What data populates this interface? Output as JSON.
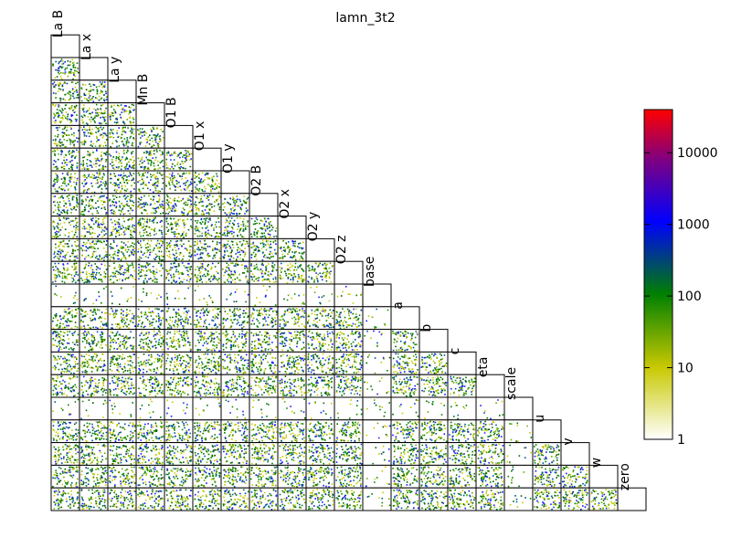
{
  "chart_data": {
    "type": "heatmap",
    "title": "lamn_3t2",
    "parameters": [
      "La B",
      "La x",
      "La y",
      "Mn B",
      "O1 B",
      "O1 x",
      "O1 y",
      "O2 B",
      "O2 x",
      "O2 y",
      "O2 z",
      "base",
      "a",
      "b",
      "c",
      "eta",
      "scale",
      "u",
      "v",
      "w",
      "zero"
    ],
    "layout": "lower-triangle pairwise scatter-density matrix",
    "colorbar": {
      "scale": "log",
      "range": [
        1,
        40000
      ],
      "ticks": [
        1,
        10,
        100,
        1000,
        10000
      ],
      "tick_labels": [
        "1",
        "10",
        "100",
        "1000",
        "10000"
      ],
      "colormap": [
        "#ffffff",
        "#c8c800",
        "#008000",
        "#0000ff",
        "#ff0000"
      ]
    },
    "grid": false,
    "legend": "colorbar right"
  }
}
